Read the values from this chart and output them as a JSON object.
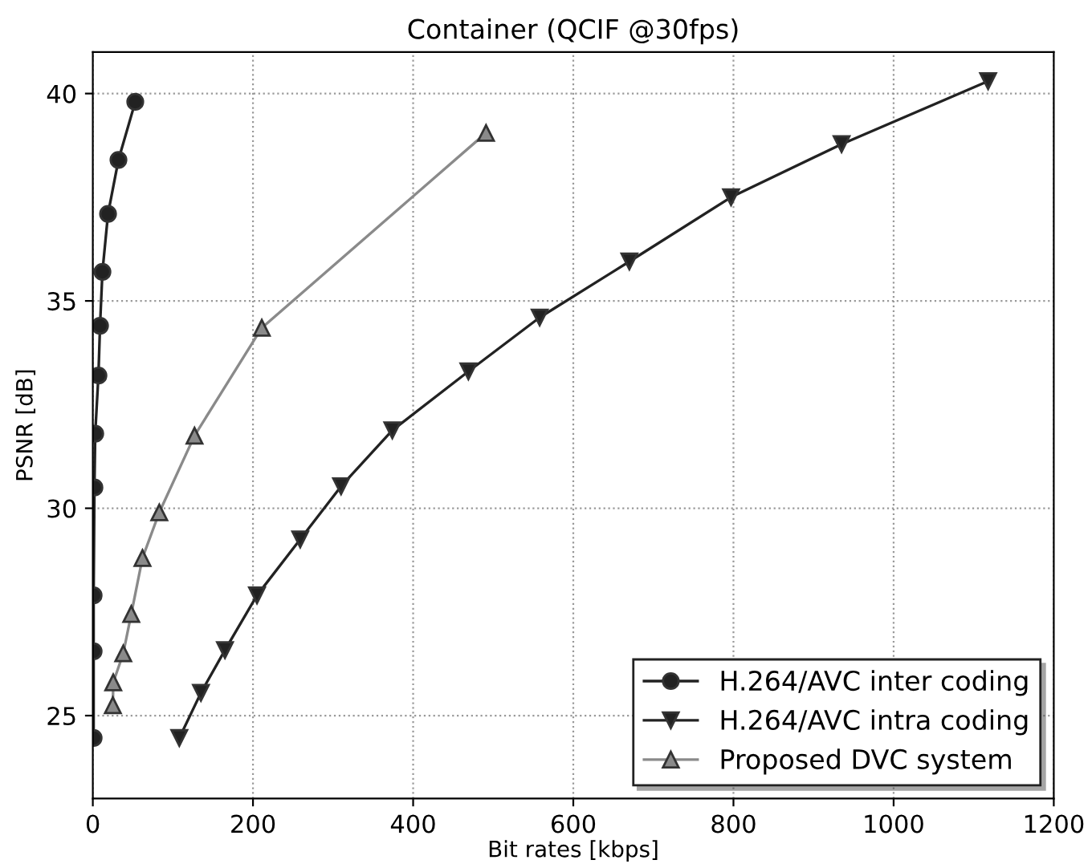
{
  "chart_data": {
    "type": "line",
    "title": "Container (QCIF @30fps)",
    "xlabel": "Bit rates [kbps]",
    "ylabel": "PSNR [dB]",
    "xlim": [
      0,
      1200
    ],
    "xticks": [
      0,
      200,
      400,
      600,
      800,
      1000,
      1200
    ],
    "ylim": [
      23,
      41
    ],
    "yticks": [
      25,
      30,
      35,
      40
    ],
    "grid": true,
    "legend": "bottom right",
    "series": [
      {
        "name": "H.264/AVC inter coding",
        "color": "#222222",
        "marker": "circle",
        "x": [
          1,
          1,
          1,
          2,
          3,
          7,
          9,
          12,
          19,
          32,
          53
        ],
        "values": [
          24.46,
          26.55,
          27.9,
          30.5,
          31.8,
          33.2,
          34.4,
          35.7,
          37.1,
          38.4,
          39.8
        ]
      },
      {
        "name": "H.264/AVC intra coding",
        "color": "#222222",
        "marker": "triangle_down",
        "x": [
          108,
          135,
          165,
          205,
          259,
          310,
          374,
          469,
          558,
          670,
          797,
          935,
          1118
        ],
        "values": [
          24.46,
          25.55,
          26.58,
          27.9,
          29.25,
          30.53,
          31.88,
          33.3,
          34.6,
          35.95,
          37.5,
          38.78,
          40.3
        ]
      },
      {
        "name": "Proposed DVC system",
        "color": "#8a8a8a",
        "marker": "triangle",
        "x": [
          25,
          25.5,
          38,
          48,
          62,
          83,
          127,
          211,
          491
        ],
        "values": [
          25.25,
          25.8,
          26.5,
          27.45,
          28.8,
          29.9,
          31.75,
          34.35,
          39.05
        ]
      }
    ]
  }
}
